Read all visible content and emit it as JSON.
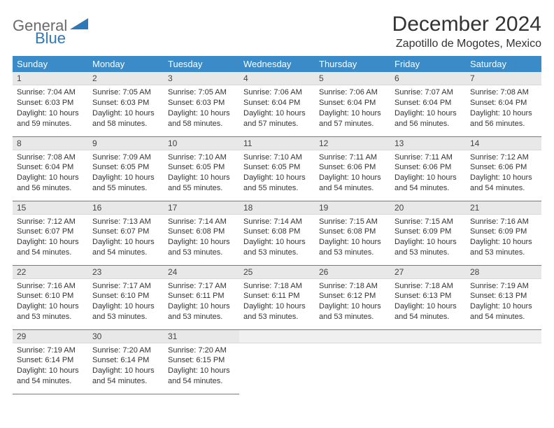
{
  "brand": {
    "part1": "General",
    "part2": "Blue"
  },
  "title": "December 2024",
  "location": "Zapotillo de Mogotes, Mexico",
  "colors": {
    "header_bg": "#3b8bc8",
    "header_text": "#ffffff",
    "daynum_bg": "#e8e8e8",
    "row_border": "#3b8bc8",
    "brand_gray": "#6a6a6a",
    "brand_blue": "#2f78b7",
    "page_bg": "#ffffff"
  },
  "fonts": {
    "title_size": 30,
    "location_size": 16,
    "header_size": 13,
    "body_size": 11
  },
  "weekdays": [
    "Sunday",
    "Monday",
    "Tuesday",
    "Wednesday",
    "Thursday",
    "Friday",
    "Saturday"
  ],
  "days": [
    {
      "n": "1",
      "sr": "7:04 AM",
      "ss": "6:03 PM",
      "dl": "10 hours and 59 minutes."
    },
    {
      "n": "2",
      "sr": "7:05 AM",
      "ss": "6:03 PM",
      "dl": "10 hours and 58 minutes."
    },
    {
      "n": "3",
      "sr": "7:05 AM",
      "ss": "6:03 PM",
      "dl": "10 hours and 58 minutes."
    },
    {
      "n": "4",
      "sr": "7:06 AM",
      "ss": "6:04 PM",
      "dl": "10 hours and 57 minutes."
    },
    {
      "n": "5",
      "sr": "7:06 AM",
      "ss": "6:04 PM",
      "dl": "10 hours and 57 minutes."
    },
    {
      "n": "6",
      "sr": "7:07 AM",
      "ss": "6:04 PM",
      "dl": "10 hours and 56 minutes."
    },
    {
      "n": "7",
      "sr": "7:08 AM",
      "ss": "6:04 PM",
      "dl": "10 hours and 56 minutes."
    },
    {
      "n": "8",
      "sr": "7:08 AM",
      "ss": "6:04 PM",
      "dl": "10 hours and 56 minutes."
    },
    {
      "n": "9",
      "sr": "7:09 AM",
      "ss": "6:05 PM",
      "dl": "10 hours and 55 minutes."
    },
    {
      "n": "10",
      "sr": "7:10 AM",
      "ss": "6:05 PM",
      "dl": "10 hours and 55 minutes."
    },
    {
      "n": "11",
      "sr": "7:10 AM",
      "ss": "6:05 PM",
      "dl": "10 hours and 55 minutes."
    },
    {
      "n": "12",
      "sr": "7:11 AM",
      "ss": "6:06 PM",
      "dl": "10 hours and 54 minutes."
    },
    {
      "n": "13",
      "sr": "7:11 AM",
      "ss": "6:06 PM",
      "dl": "10 hours and 54 minutes."
    },
    {
      "n": "14",
      "sr": "7:12 AM",
      "ss": "6:06 PM",
      "dl": "10 hours and 54 minutes."
    },
    {
      "n": "15",
      "sr": "7:12 AM",
      "ss": "6:07 PM",
      "dl": "10 hours and 54 minutes."
    },
    {
      "n": "16",
      "sr": "7:13 AM",
      "ss": "6:07 PM",
      "dl": "10 hours and 54 minutes."
    },
    {
      "n": "17",
      "sr": "7:14 AM",
      "ss": "6:08 PM",
      "dl": "10 hours and 53 minutes."
    },
    {
      "n": "18",
      "sr": "7:14 AM",
      "ss": "6:08 PM",
      "dl": "10 hours and 53 minutes."
    },
    {
      "n": "19",
      "sr": "7:15 AM",
      "ss": "6:08 PM",
      "dl": "10 hours and 53 minutes."
    },
    {
      "n": "20",
      "sr": "7:15 AM",
      "ss": "6:09 PM",
      "dl": "10 hours and 53 minutes."
    },
    {
      "n": "21",
      "sr": "7:16 AM",
      "ss": "6:09 PM",
      "dl": "10 hours and 53 minutes."
    },
    {
      "n": "22",
      "sr": "7:16 AM",
      "ss": "6:10 PM",
      "dl": "10 hours and 53 minutes."
    },
    {
      "n": "23",
      "sr": "7:17 AM",
      "ss": "6:10 PM",
      "dl": "10 hours and 53 minutes."
    },
    {
      "n": "24",
      "sr": "7:17 AM",
      "ss": "6:11 PM",
      "dl": "10 hours and 53 minutes."
    },
    {
      "n": "25",
      "sr": "7:18 AM",
      "ss": "6:11 PM",
      "dl": "10 hours and 53 minutes."
    },
    {
      "n": "26",
      "sr": "7:18 AM",
      "ss": "6:12 PM",
      "dl": "10 hours and 53 minutes."
    },
    {
      "n": "27",
      "sr": "7:18 AM",
      "ss": "6:13 PM",
      "dl": "10 hours and 54 minutes."
    },
    {
      "n": "28",
      "sr": "7:19 AM",
      "ss": "6:13 PM",
      "dl": "10 hours and 54 minutes."
    },
    {
      "n": "29",
      "sr": "7:19 AM",
      "ss": "6:14 PM",
      "dl": "10 hours and 54 minutes."
    },
    {
      "n": "30",
      "sr": "7:20 AM",
      "ss": "6:14 PM",
      "dl": "10 hours and 54 minutes."
    },
    {
      "n": "31",
      "sr": "7:20 AM",
      "ss": "6:15 PM",
      "dl": "10 hours and 54 minutes."
    }
  ],
  "labels": {
    "sunrise": "Sunrise:",
    "sunset": "Sunset:",
    "daylight": "Daylight:"
  },
  "layout": {
    "cols": 7,
    "rows": 5,
    "first_weekday_index": 0,
    "trailing_blanks": 4
  }
}
